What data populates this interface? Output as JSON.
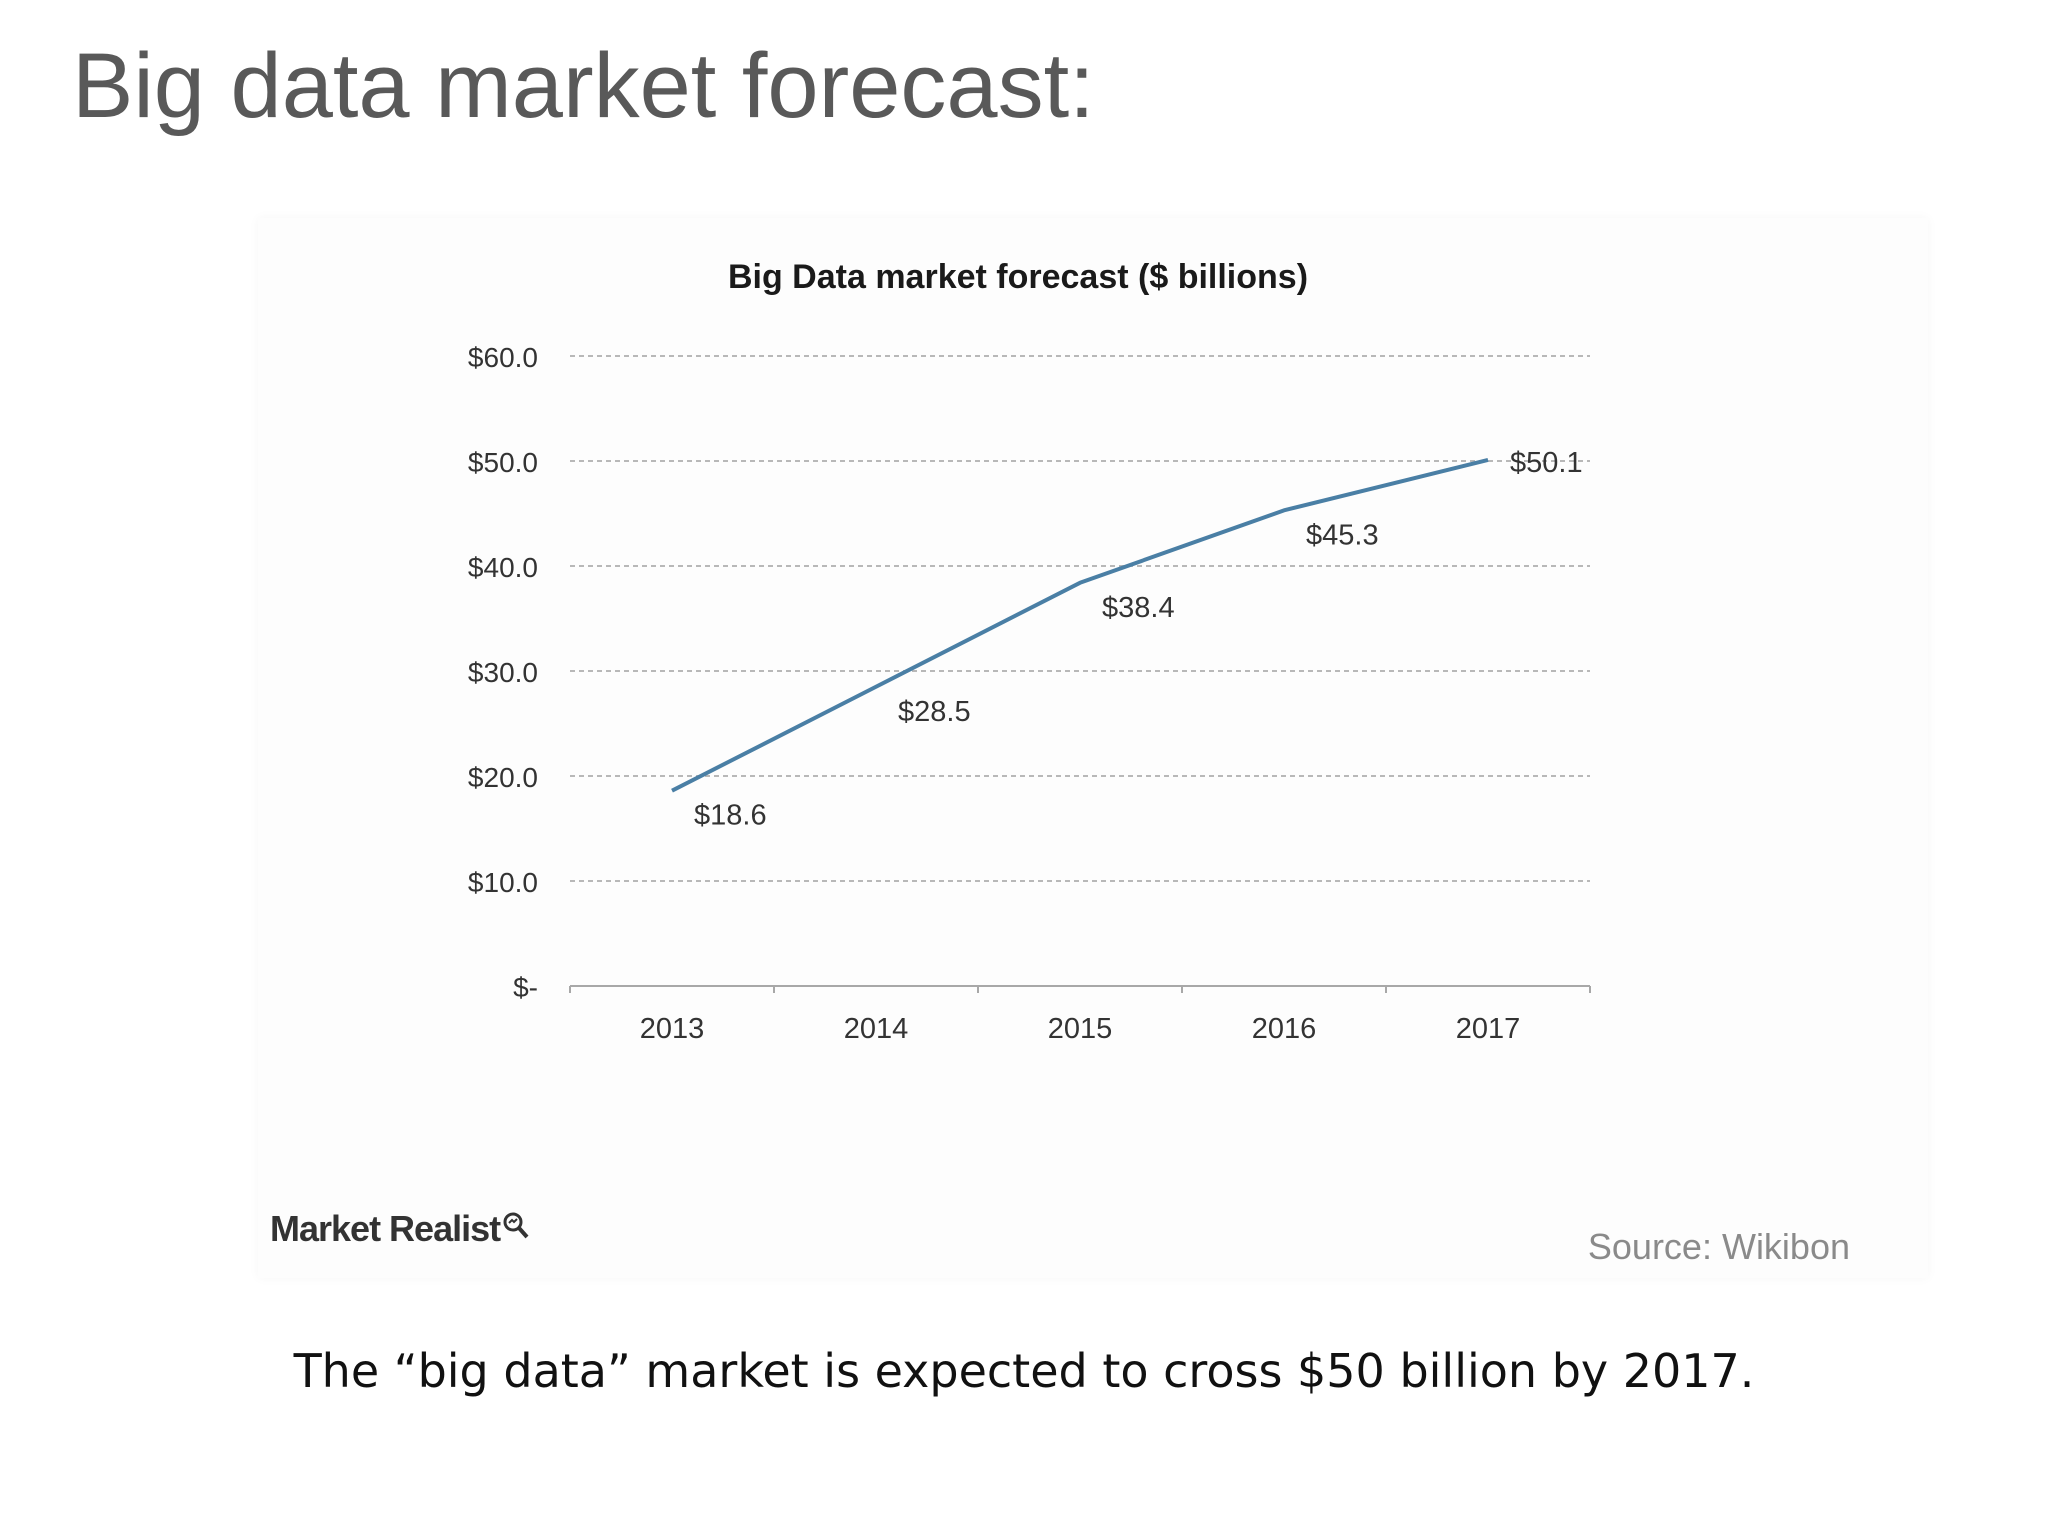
{
  "slide": {
    "title": "Big data market forecast:",
    "caption": "The “big data” market is expected to cross $50 billion by 2017."
  },
  "footer": {
    "brand": "Market Realist",
    "source": "Source: Wikibon"
  },
  "colors": {
    "line": "#4a7fa5",
    "grid": "#b8b8b8",
    "text": "#333333"
  },
  "chart_data": {
    "type": "line",
    "title": "Big Data market forecast ($ billions)",
    "categories": [
      "2013",
      "2014",
      "2015",
      "2016",
      "2017"
    ],
    "series": [
      {
        "name": "Big Data market",
        "values": [
          18.6,
          28.5,
          38.4,
          45.3,
          50.1
        ],
        "labels": [
          "$18.6",
          "$28.5",
          "$38.4",
          "$45.3",
          "$50.1"
        ]
      }
    ],
    "ylim": [
      0,
      60
    ],
    "yticks": [
      0,
      10,
      20,
      30,
      40,
      50,
      60
    ],
    "ytick_labels": [
      "$-",
      "$10.0",
      "$20.0",
      "$30.0",
      "$40.0",
      "$50.0",
      "$60.0"
    ],
    "xlabel": "",
    "ylabel": "",
    "grid": true,
    "legend": "none"
  }
}
